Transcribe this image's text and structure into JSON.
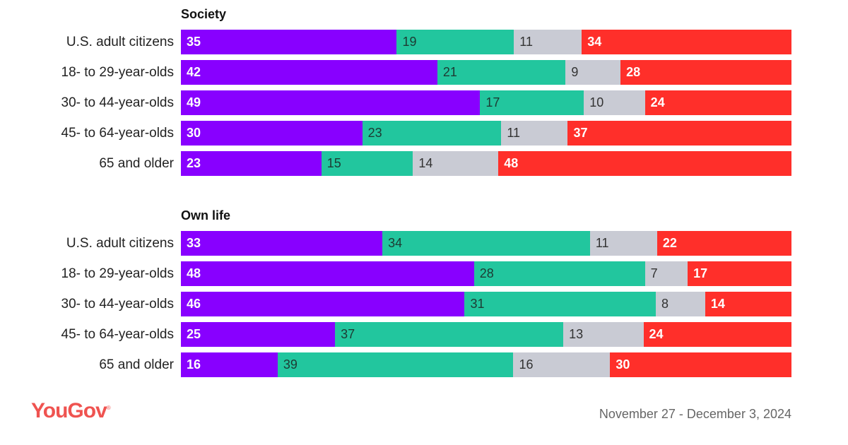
{
  "chart_data": [
    {
      "type": "bar",
      "orientation": "horizontal-stacked-100",
      "title": "Society",
      "categories": [
        "U.S. adult citizens",
        "18- to 29-year-olds",
        "30- to 44-year-olds",
        "45- to 64-year-olds",
        "65 and older"
      ],
      "series": [
        {
          "values": [
            35,
            42,
            49,
            30,
            23
          ],
          "color": "#8800ff"
        },
        {
          "values": [
            19,
            21,
            17,
            23,
            15
          ],
          "color": "#22c69e"
        },
        {
          "values": [
            11,
            9,
            10,
            11,
            14
          ],
          "color": "#c9cbd4"
        },
        {
          "values": [
            34,
            28,
            24,
            37,
            48
          ],
          "color": "#ff2f2a"
        }
      ]
    },
    {
      "type": "bar",
      "orientation": "horizontal-stacked-100",
      "title": "Own life",
      "categories": [
        "U.S. adult citizens",
        "18- to 29-year-olds",
        "30- to 44-year-olds",
        "45- to 64-year-olds",
        "65 and older"
      ],
      "series": [
        {
          "values": [
            33,
            48,
            46,
            25,
            16
          ],
          "color": "#8800ff"
        },
        {
          "values": [
            34,
            28,
            31,
            37,
            39
          ],
          "color": "#22c69e"
        },
        {
          "values": [
            11,
            7,
            8,
            13,
            16
          ],
          "color": "#c9cbd4"
        },
        {
          "values": [
            22,
            17,
            14,
            24,
            30
          ],
          "color": "#ff2f2a"
        }
      ]
    }
  ],
  "footer": {
    "logo": "YouGov",
    "date": "November 27 - December 3, 2024"
  }
}
